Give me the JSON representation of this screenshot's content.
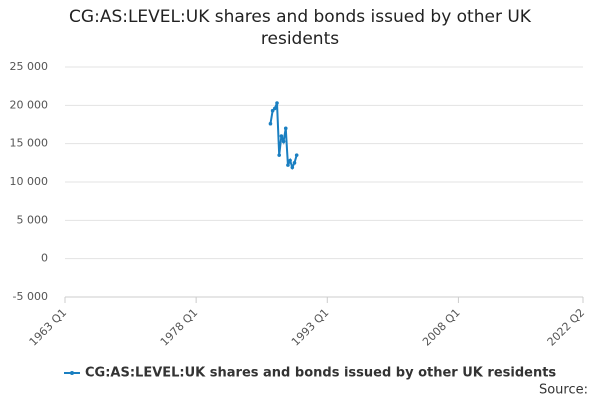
{
  "chart_data": {
    "type": "line",
    "title": "CG:AS:LEVEL:UK shares and bonds issued by other UK residents",
    "x": [
      "1986 Q3",
      "1986 Q4",
      "1987 Q1",
      "1987 Q2",
      "1987 Q3",
      "1987 Q4",
      "1988 Q1",
      "1988 Q2",
      "1988 Q3",
      "1988 Q4",
      "1989 Q1",
      "1989 Q2",
      "1989 Q3"
    ],
    "series": [
      {
        "name": "CG:AS:LEVEL:UK shares and bonds issued by other UK residents",
        "color": "#1a7fc1",
        "values": [
          17600,
          19300,
          19600,
          20300,
          13500,
          16000,
          15300,
          17000,
          12200,
          12800,
          11900,
          12500,
          13500
        ]
      }
    ],
    "xlim": [
      "1963 Q1",
      "2022 Q2"
    ],
    "xticks": [
      "1963 Q1",
      "1978 Q1",
      "1993 Q1",
      "2008 Q1",
      "2022 Q2"
    ],
    "ylim": [
      -5000,
      25000
    ],
    "yticks": [
      {
        "value": -5000,
        "label": "-5 000"
      },
      {
        "value": 0,
        "label": "0"
      },
      {
        "value": 5000,
        "label": "5 000"
      },
      {
        "value": 10000,
        "label": "10 000"
      },
      {
        "value": 15000,
        "label": "15 000"
      },
      {
        "value": 20000,
        "label": "20 000"
      },
      {
        "value": 25000,
        "label": "25 000"
      }
    ],
    "grid": true,
    "source": "Source:"
  }
}
